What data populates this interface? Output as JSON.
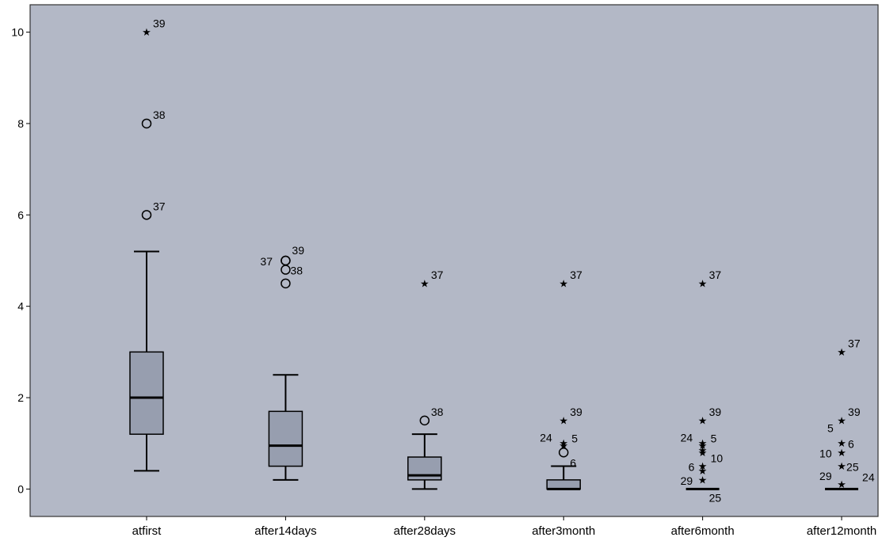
{
  "chart_data": {
    "type": "boxplot",
    "title": "",
    "xlabel": "",
    "ylabel": "",
    "ylim": [
      -0.6,
      10.6
    ],
    "yticks": [
      0,
      2,
      4,
      6,
      8,
      10
    ],
    "grid": false,
    "categories": [
      "atfirst",
      "after14days",
      "after28days",
      "after3month",
      "after6month",
      "after12month"
    ],
    "boxes": [
      {
        "whisker_low": 0.4,
        "q1": 1.2,
        "median": 2.0,
        "q3": 3.0,
        "whisker_high": 5.2
      },
      {
        "whisker_low": 0.2,
        "q1": 0.5,
        "median": 0.95,
        "q3": 1.7,
        "whisker_high": 2.5
      },
      {
        "whisker_low": 0.0,
        "q1": 0.2,
        "median": 0.3,
        "q3": 0.7,
        "whisker_high": 1.2
      },
      {
        "whisker_low": 0.0,
        "q1": 0.0,
        "median": 0.0,
        "q3": 0.2,
        "whisker_high": 0.5
      },
      {
        "whisker_low": 0.0,
        "q1": 0.0,
        "median": 0.0,
        "q3": 0.0,
        "whisker_high": 0.0
      },
      {
        "whisker_low": 0.0,
        "q1": 0.0,
        "median": 0.0,
        "q3": 0.0,
        "whisker_high": 0.0
      }
    ],
    "outliers": [
      {
        "group": 0,
        "y": 10.0,
        "marker": "star",
        "label": "39"
      },
      {
        "group": 0,
        "y": 8.0,
        "marker": "circle",
        "label": "38"
      },
      {
        "group": 0,
        "y": 6.0,
        "marker": "circle",
        "label": "37"
      },
      {
        "group": 1,
        "y": 5.0,
        "marker": "circle",
        "label": "39"
      },
      {
        "group": 1,
        "y": 5.0,
        "marker": "circle",
        "label": "37"
      },
      {
        "group": 1,
        "y": 4.8,
        "marker": "circle",
        "label": "38"
      },
      {
        "group": 1,
        "y": 4.5,
        "marker": "circle",
        "label": ""
      },
      {
        "group": 2,
        "y": 4.5,
        "marker": "star",
        "label": "37"
      },
      {
        "group": 2,
        "y": 1.5,
        "marker": "circle",
        "label": "38"
      },
      {
        "group": 3,
        "y": 4.5,
        "marker": "star",
        "label": "37"
      },
      {
        "group": 3,
        "y": 1.5,
        "marker": "star",
        "label": "39"
      },
      {
        "group": 3,
        "y": 1.0,
        "marker": "star",
        "label": "24"
      },
      {
        "group": 3,
        "y": 0.95,
        "marker": "star",
        "label": "5"
      },
      {
        "group": 3,
        "y": 0.8,
        "marker": "circle",
        "label": "6"
      },
      {
        "group": 4,
        "y": 4.5,
        "marker": "star",
        "label": "37"
      },
      {
        "group": 4,
        "y": 1.5,
        "marker": "star",
        "label": "39"
      },
      {
        "group": 4,
        "y": 1.0,
        "marker": "star",
        "label": "24"
      },
      {
        "group": 4,
        "y": 0.95,
        "marker": "star",
        "label": "5"
      },
      {
        "group": 4,
        "y": 0.85,
        "marker": "star",
        "label": ""
      },
      {
        "group": 4,
        "y": 0.8,
        "marker": "star",
        "label": "10"
      },
      {
        "group": 4,
        "y": 0.5,
        "marker": "star",
        "label": "6"
      },
      {
        "group": 4,
        "y": 0.4,
        "marker": "star",
        "label": ""
      },
      {
        "group": 4,
        "y": 0.2,
        "marker": "star",
        "label": "29"
      },
      {
        "group": 4,
        "y": 0.0,
        "marker": "none",
        "label": "25"
      },
      {
        "group": 5,
        "y": 3.0,
        "marker": "star",
        "label": "37"
      },
      {
        "group": 5,
        "y": 1.5,
        "marker": "star",
        "label": "39"
      },
      {
        "group": 5,
        "y": 1.25,
        "marker": "none",
        "label": "5"
      },
      {
        "group": 5,
        "y": 1.0,
        "marker": "star",
        "label": "6"
      },
      {
        "group": 5,
        "y": 0.8,
        "marker": "star",
        "label": "10"
      },
      {
        "group": 5,
        "y": 0.5,
        "marker": "star",
        "label": "25"
      },
      {
        "group": 5,
        "y": 0.3,
        "marker": "none",
        "label": "29"
      },
      {
        "group": 5,
        "y": 0.1,
        "marker": "star",
        "label": "24"
      }
    ],
    "colors": {
      "plot_background": "#b3b8c6",
      "box_fill": "#979eaf",
      "stroke": "#000000",
      "frame": "#333333",
      "background": "#ffffff"
    }
  }
}
